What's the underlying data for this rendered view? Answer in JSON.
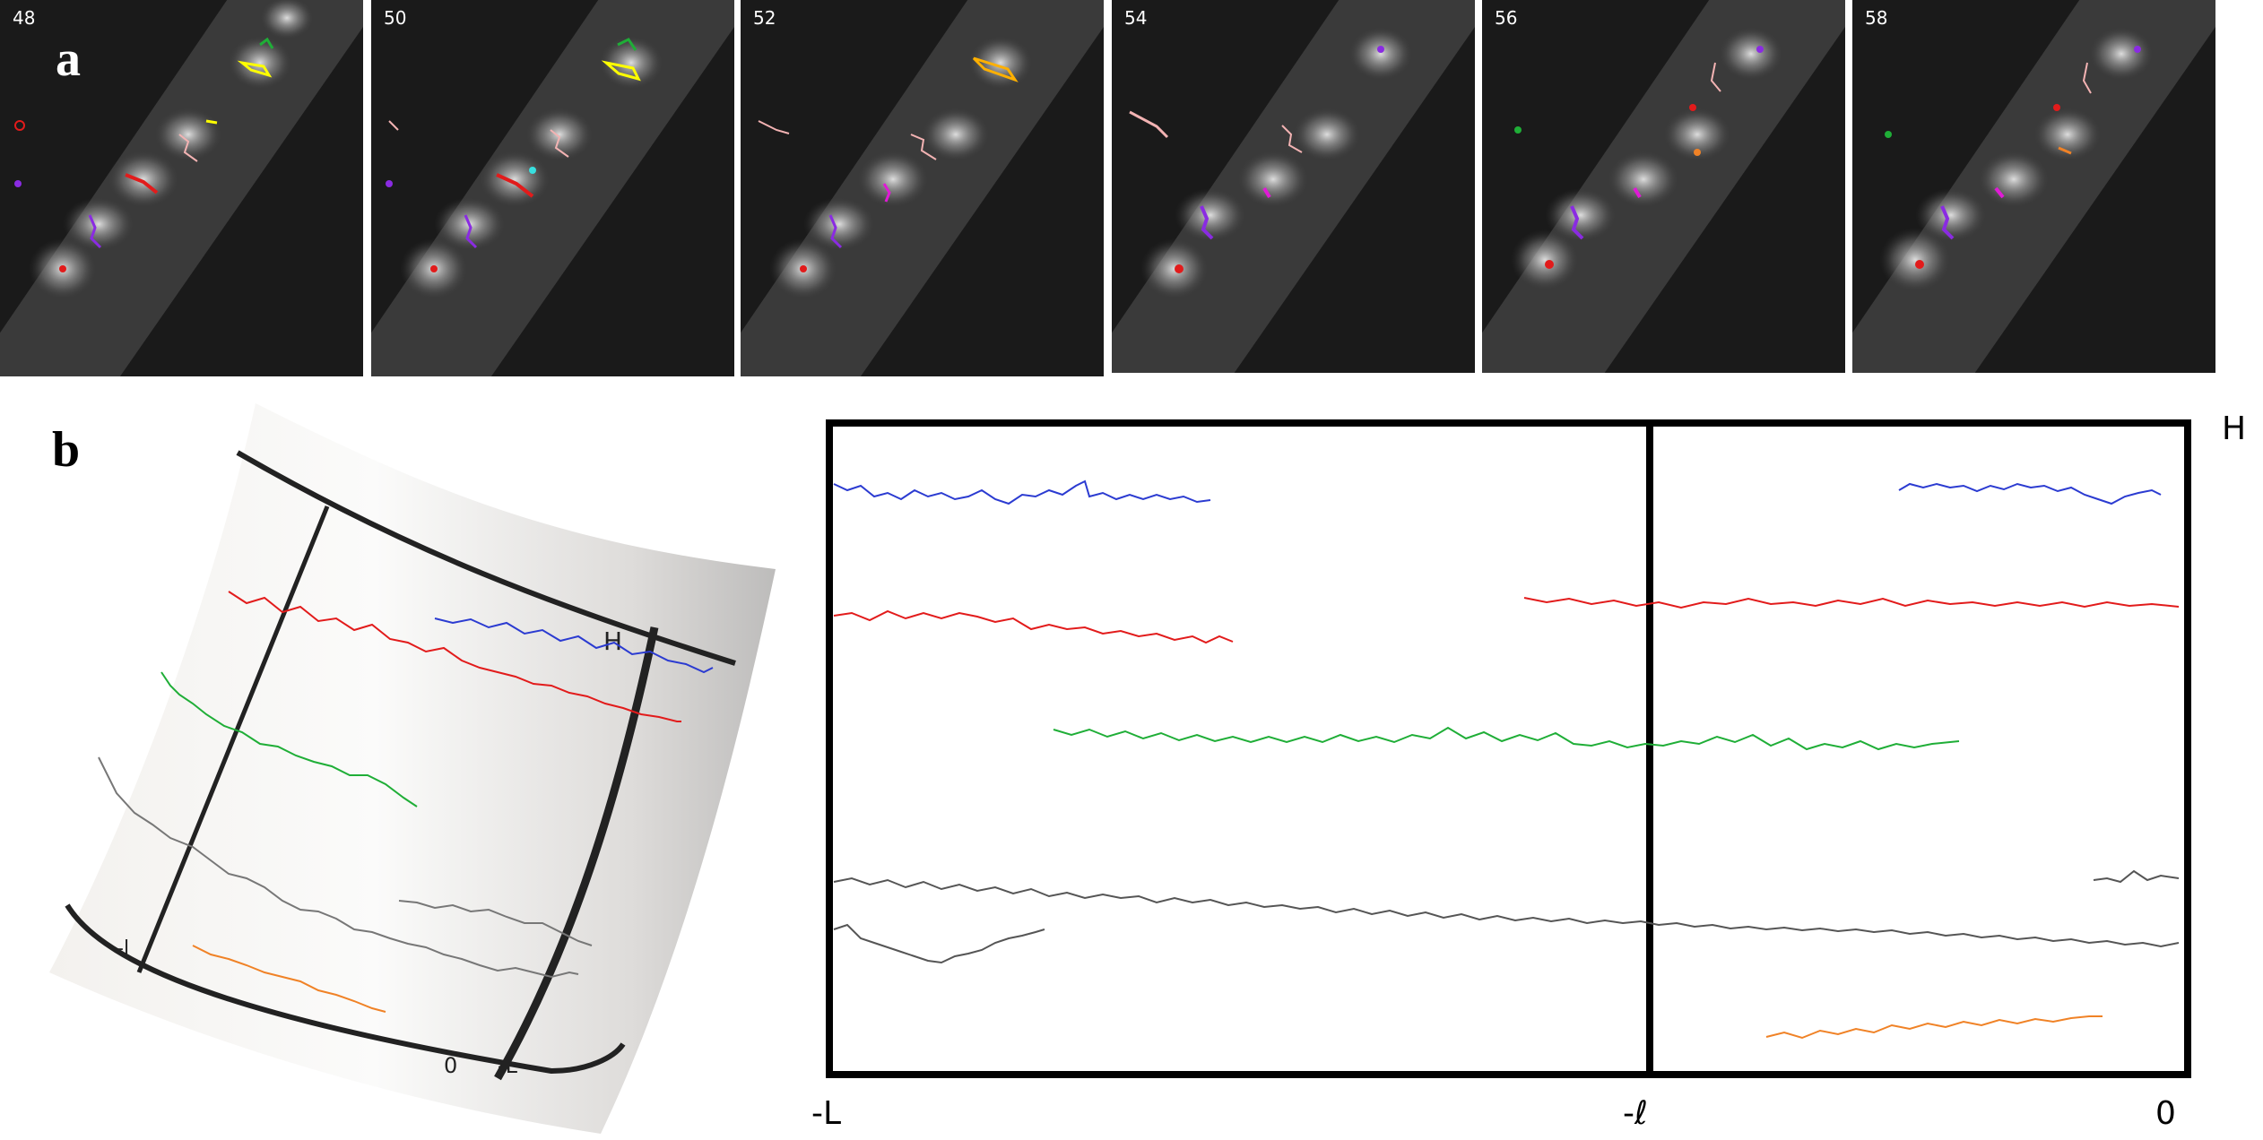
{
  "figure": {
    "panel_a": {
      "letter": "a",
      "frames": [
        {
          "label": "48"
        },
        {
          "label": "50"
        },
        {
          "label": "52"
        },
        {
          "label": "54"
        },
        {
          "label": "56"
        },
        {
          "label": "58"
        }
      ]
    },
    "panel_b": {
      "letter": "b",
      "cylinder_labels": {
        "H": "H",
        "zero": "0",
        "minus_l": "-L",
        "minus_small": "-l"
      },
      "axis": {
        "x_ticks": [
          "-L",
          "-ℓ",
          "0"
        ],
        "y_label": "H"
      }
    }
  },
  "colors": {
    "blue": "#2b3bd1",
    "red": "#e21b1b",
    "green": "#1fae37",
    "gray": "#555555",
    "orange": "#f08226",
    "yellow": "#ffff00",
    "pink": "#f3b3b3",
    "purple": "#8a2be2",
    "magenta": "#e01ad6"
  }
}
